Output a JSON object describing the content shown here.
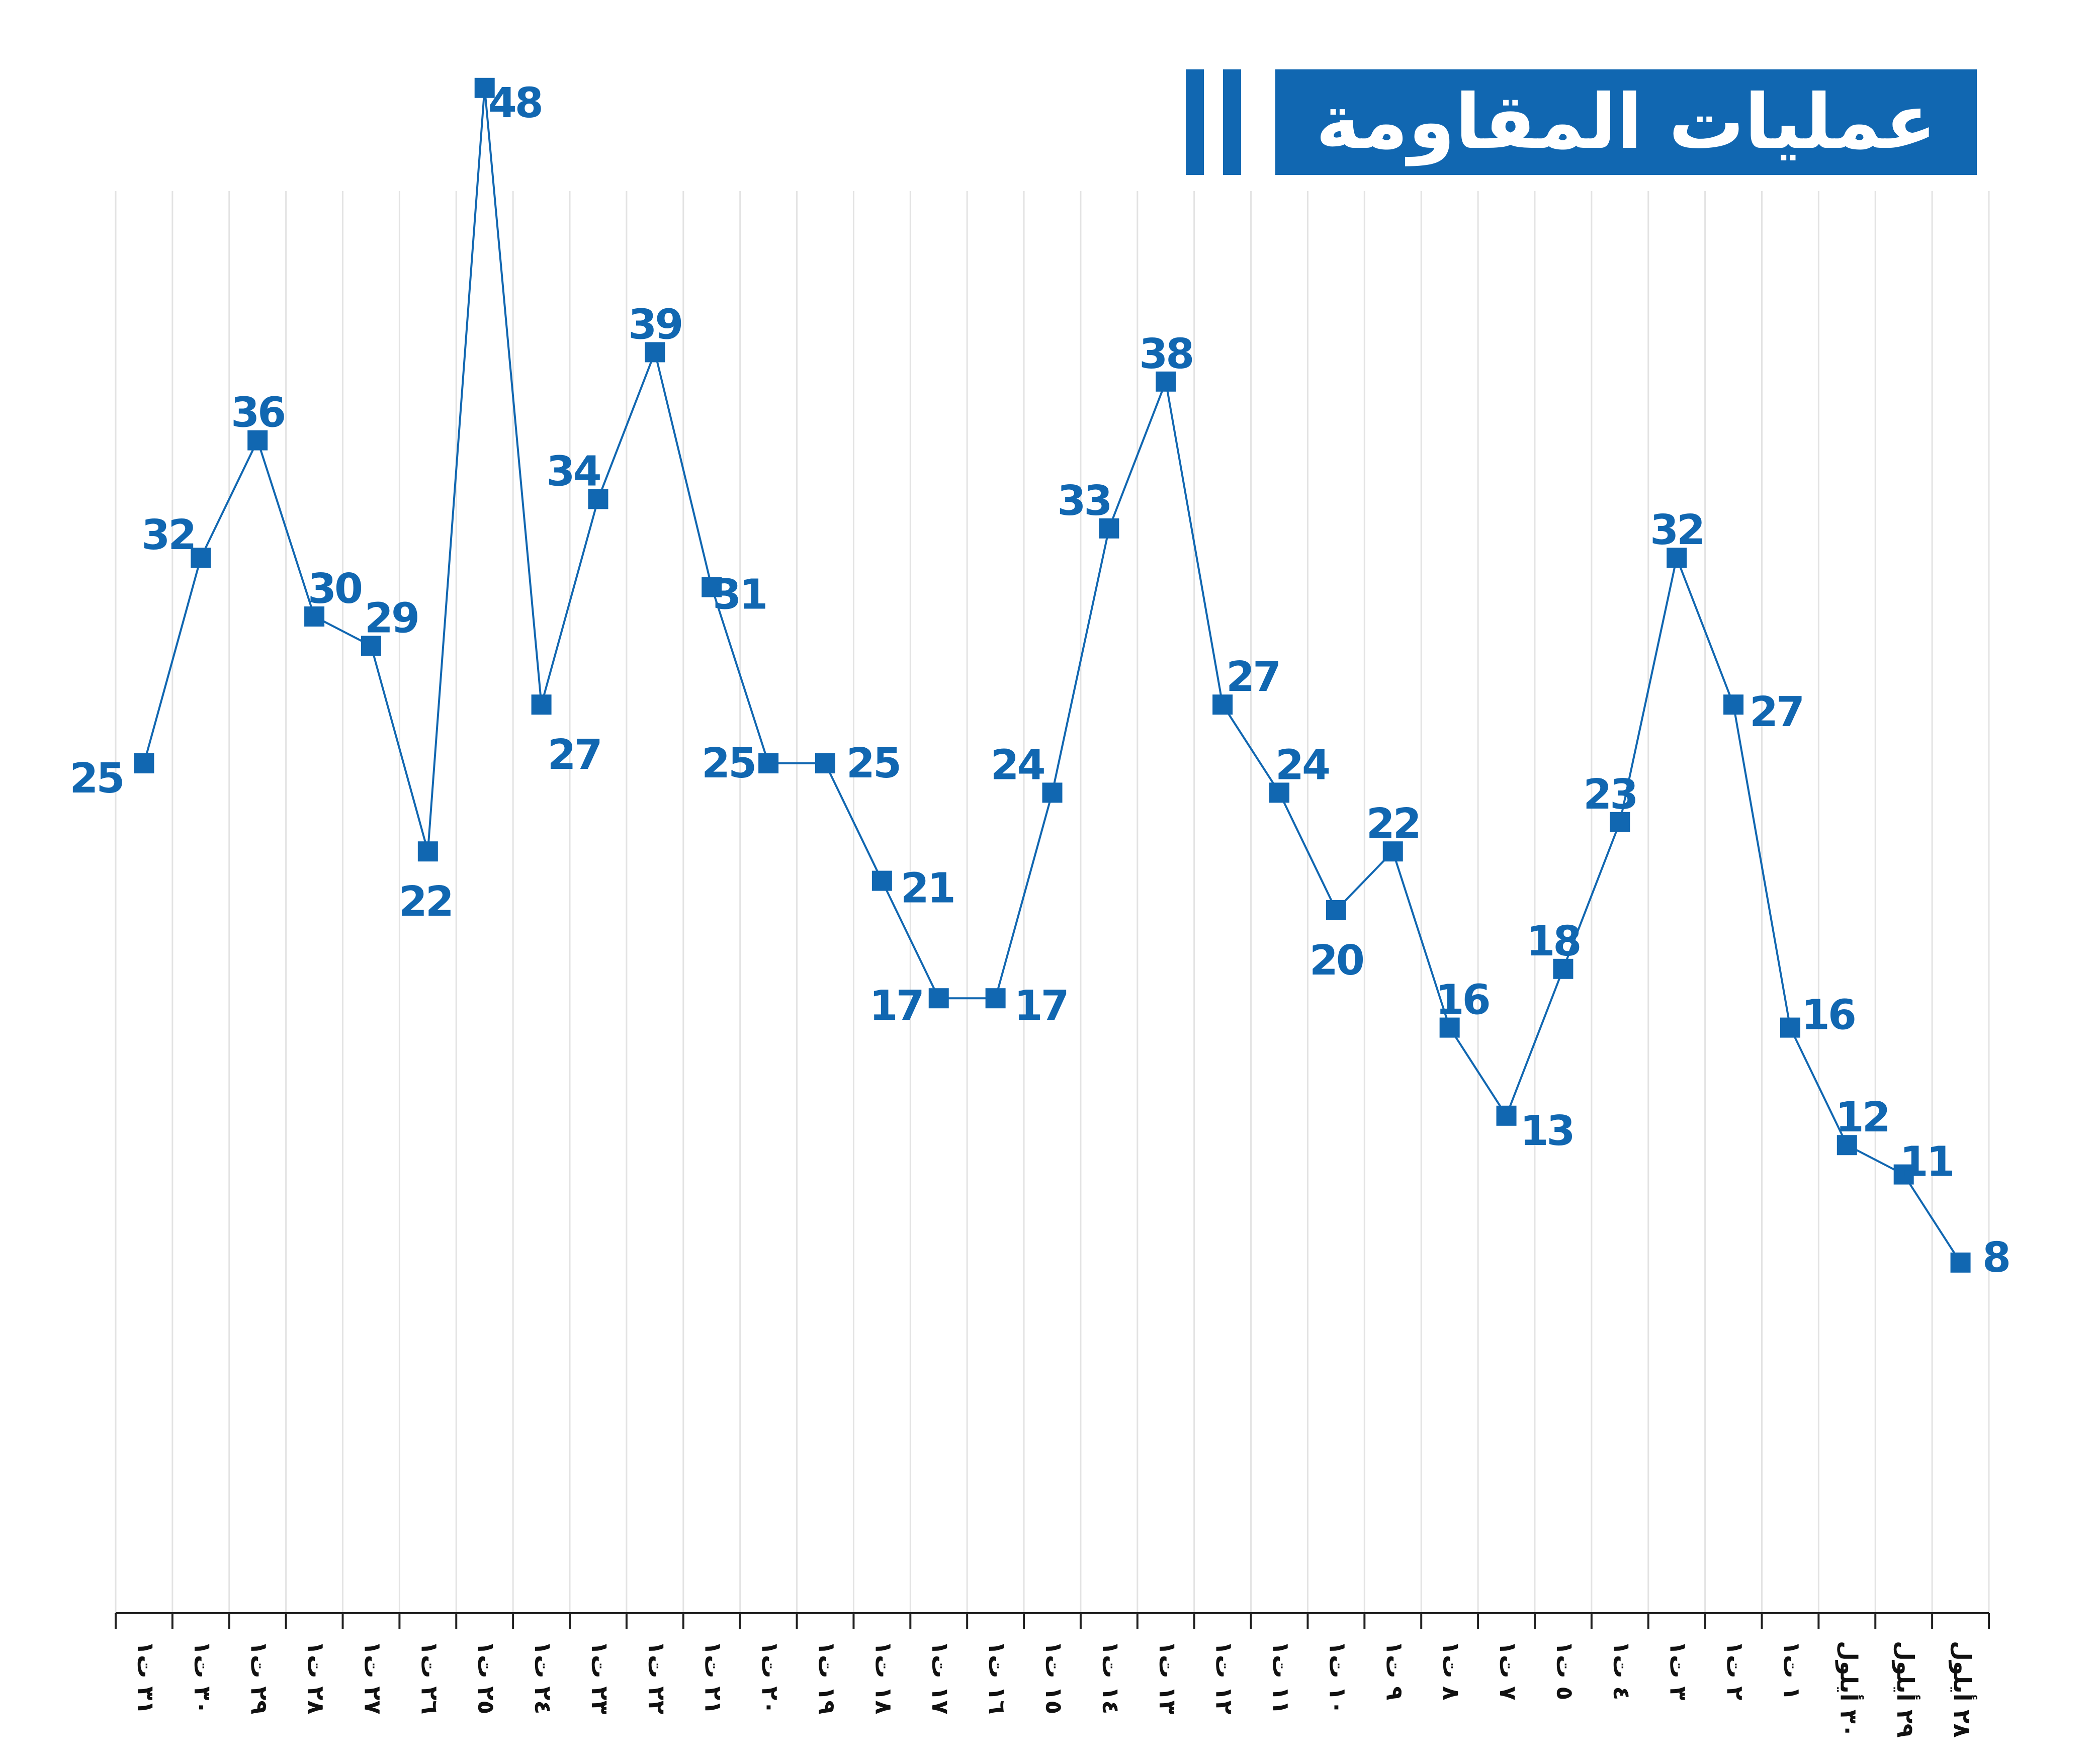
{
  "chart_data": {
    "type": "line",
    "title": "عمليات المقاومة",
    "xlabel": "",
    "ylabel": "",
    "ylim": [
      0,
      48
    ],
    "grid": true,
    "legend": "none",
    "color": "#1167b1",
    "series": [
      {
        "values": [
          25,
          32,
          36,
          30,
          29,
          22,
          48,
          27,
          34,
          39,
          31,
          25,
          25,
          21,
          17,
          17,
          24,
          33,
          38,
          27,
          24,
          20,
          22,
          16,
          13,
          18,
          23,
          32,
          27,
          16,
          12,
          11,
          8
        ]
      }
    ],
    "x_ticks": [
      "٣١ ت١",
      "٣٠ ت١",
      "٢٩ ت١",
      "٢٨ ت١",
      "٢٧ ت١",
      "٢٦ ت١",
      "٢٥ ت١",
      "٢٤ ت١",
      "٢٣ ت١",
      "٢٢ ت١",
      "٢١ ت١",
      "٢٠ ت١",
      "١٩ ت١",
      "١٨ ت١",
      "١٧ ت١",
      "١٦ ت١",
      "١٥ ت١",
      "١٤ ت١",
      "١٣ ت١",
      "١٢ ت١",
      "١١ ت١",
      "١٠ ت١",
      "٩ ت١",
      "٨ ت١",
      "٧ ت١",
      "٥ ت١",
      "٤ ت١",
      "٣ ت١",
      "٢ ت١",
      "١ ت١",
      "٣٠ أيلول",
      "٢٩ أيلول",
      "٢٨ أيلول"
    ]
  }
}
